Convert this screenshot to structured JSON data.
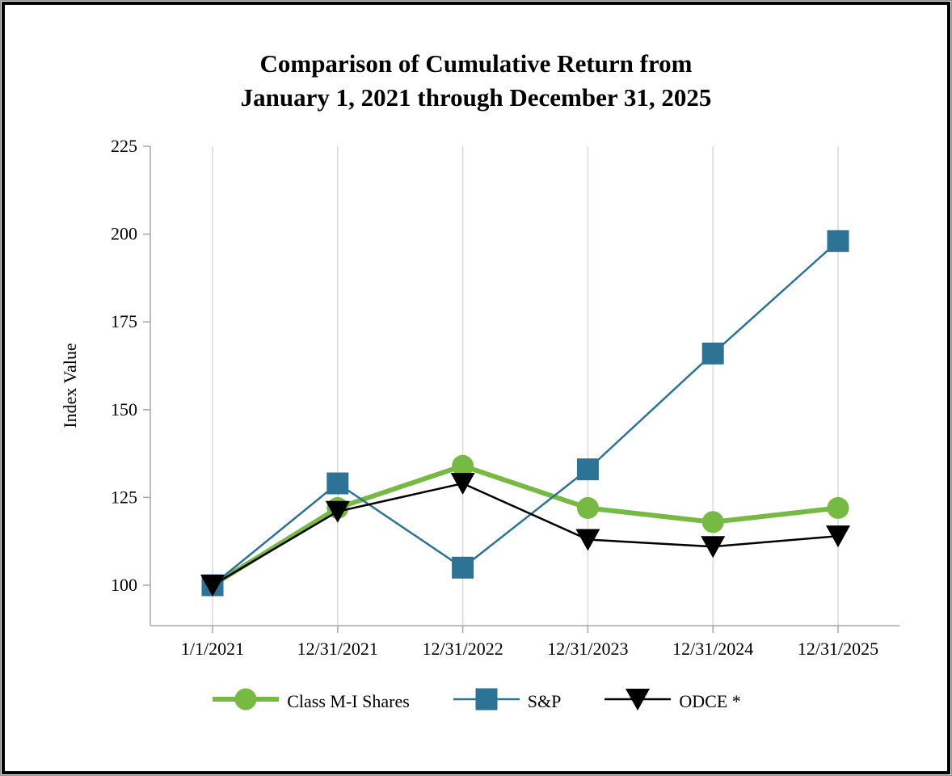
{
  "chart_data": {
    "type": "line",
    "title_line1": "Comparison of Cumulative Return from",
    "title_line2": "January 1, 2021 through December 31, 2025",
    "ylabel": "Index Value",
    "categories": [
      "1/1/2021",
      "12/31/2021",
      "12/31/2022",
      "12/31/2023",
      "12/31/2024",
      "12/31/2025"
    ],
    "yticks": [
      100,
      125,
      150,
      175,
      200,
      225
    ],
    "ylim": [
      88.5,
      225
    ],
    "grid": "vertical-category-gridlines-only",
    "legend_position": "bottom",
    "series": [
      {
        "name": "Class M-I Shares",
        "marker": "circle",
        "color": "#76B943",
        "line_width": 6,
        "values": [
          100,
          122,
          134,
          122,
          118,
          122
        ]
      },
      {
        "name": "S&P",
        "marker": "square",
        "color": "#2D7396",
        "line_width": 2.5,
        "values": [
          100,
          129,
          105,
          133,
          166,
          198
        ]
      },
      {
        "name": "ODCE *",
        "marker": "triangle-down",
        "color": "#000000",
        "line_width": 2.5,
        "values": [
          100,
          121,
          129,
          113,
          111,
          114
        ]
      }
    ],
    "colors": {
      "axis": "#A6A6A6",
      "gridline": "#D9D9D9",
      "background": "#FFFFFF",
      "border": "#000000"
    }
  }
}
